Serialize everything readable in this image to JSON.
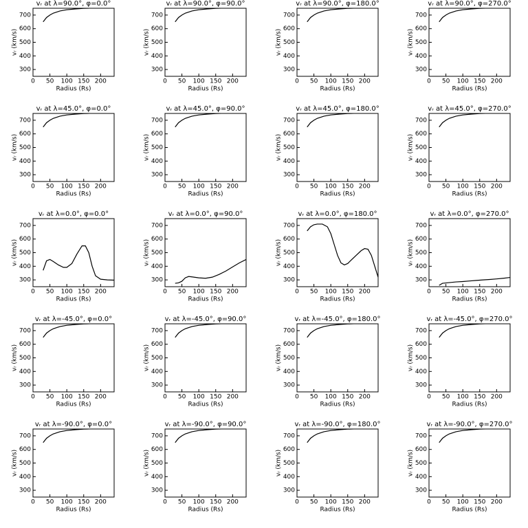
{
  "chart_data": [
    {
      "type": "line",
      "title": "vᵣ at λ=90.0°, φ=0.0°",
      "x_label": "Radius (Rs)",
      "y_label": "vᵣ (km/s)",
      "x": [
        30,
        40,
        50,
        60,
        80,
        100,
        125,
        150,
        175,
        200,
        240
      ],
      "values": [
        650,
        682,
        700,
        714,
        730,
        739,
        745,
        749,
        751,
        752,
        753
      ],
      "color": "#000000",
      "xlim": [
        0,
        240
      ],
      "xticks": [
        0,
        50,
        100,
        150,
        200
      ],
      "ylim": [
        250,
        750
      ],
      "yticks": [
        300,
        400,
        500,
        600,
        700
      ]
    },
    {
      "type": "line",
      "title": "vᵣ at λ=90.0°, φ=90.0°",
      "x_label": "Radius (Rs)",
      "y_label": "vᵣ (km/s)",
      "x": [
        30,
        40,
        50,
        60,
        80,
        100,
        125,
        150,
        175,
        200,
        240
      ],
      "values": [
        650,
        682,
        700,
        714,
        730,
        739,
        745,
        749,
        751,
        752,
        753
      ],
      "color": "#000000",
      "xlim": [
        0,
        240
      ],
      "xticks": [
        0,
        50,
        100,
        150,
        200
      ],
      "ylim": [
        250,
        750
      ],
      "yticks": [
        300,
        400,
        500,
        600,
        700
      ]
    },
    {
      "type": "line",
      "title": "vᵣ at λ=90.0°, φ=180.0°",
      "x_label": "Radius (Rs)",
      "y_label": "vᵣ (km/s)",
      "x": [
        30,
        40,
        50,
        60,
        80,
        100,
        125,
        150,
        175,
        200,
        240
      ],
      "values": [
        650,
        682,
        700,
        714,
        730,
        739,
        745,
        749,
        751,
        752,
        753
      ],
      "color": "#000000",
      "xlim": [
        0,
        240
      ],
      "xticks": [
        0,
        50,
        100,
        150,
        200
      ],
      "ylim": [
        250,
        750
      ],
      "yticks": [
        300,
        400,
        500,
        600,
        700
      ]
    },
    {
      "type": "line",
      "title": "vᵣ at λ=90.0°, φ=270.0°",
      "x_label": "Radius (Rs)",
      "y_label": "vᵣ (km/s)",
      "x": [
        30,
        40,
        50,
        60,
        80,
        100,
        125,
        150,
        175,
        200,
        240
      ],
      "values": [
        650,
        682,
        700,
        714,
        730,
        739,
        745,
        749,
        751,
        752,
        753
      ],
      "color": "#000000",
      "xlim": [
        0,
        240
      ],
      "xticks": [
        0,
        50,
        100,
        150,
        200
      ],
      "ylim": [
        250,
        750
      ],
      "yticks": [
        300,
        400,
        500,
        600,
        700
      ]
    },
    {
      "type": "line",
      "title": "vᵣ at λ=45.0°, φ=0.0°",
      "x_label": "Radius (Rs)",
      "y_label": "vᵣ (km/s)",
      "x": [
        30,
        40,
        50,
        60,
        80,
        100,
        125,
        150,
        175,
        200,
        240
      ],
      "values": [
        650,
        682,
        700,
        714,
        730,
        739,
        745,
        749,
        751,
        752,
        753
      ],
      "color": "#000000",
      "xlim": [
        0,
        240
      ],
      "xticks": [
        0,
        50,
        100,
        150,
        200
      ],
      "ylim": [
        250,
        750
      ],
      "yticks": [
        300,
        400,
        500,
        600,
        700
      ]
    },
    {
      "type": "line",
      "title": "vᵣ at λ=45.0°, φ=90.0°",
      "x_label": "Radius (Rs)",
      "y_label": "vᵣ (km/s)",
      "x": [
        30,
        40,
        50,
        60,
        80,
        100,
        125,
        150,
        175,
        200,
        240
      ],
      "values": [
        650,
        682,
        700,
        714,
        730,
        739,
        745,
        749,
        751,
        752,
        753
      ],
      "color": "#000000",
      "xlim": [
        0,
        240
      ],
      "xticks": [
        0,
        50,
        100,
        150,
        200
      ],
      "ylim": [
        250,
        750
      ],
      "yticks": [
        300,
        400,
        500,
        600,
        700
      ]
    },
    {
      "type": "line",
      "title": "vᵣ at λ=45.0°, φ=180.0°",
      "x_label": "Radius (Rs)",
      "y_label": "vᵣ (km/s)",
      "x": [
        30,
        40,
        50,
        60,
        80,
        100,
        125,
        150,
        175,
        200,
        240
      ],
      "values": [
        650,
        682,
        700,
        714,
        730,
        739,
        745,
        749,
        751,
        752,
        753
      ],
      "color": "#000000",
      "xlim": [
        0,
        240
      ],
      "xticks": [
        0,
        50,
        100,
        150,
        200
      ],
      "ylim": [
        250,
        750
      ],
      "yticks": [
        300,
        400,
        500,
        600,
        700
      ]
    },
    {
      "type": "line",
      "title": "vᵣ at λ=45.0°, φ=270.0°",
      "x_label": "Radius (Rs)",
      "y_label": "vᵣ (km/s)",
      "x": [
        30,
        40,
        50,
        60,
        80,
        100,
        125,
        150,
        175,
        200,
        240
      ],
      "values": [
        650,
        682,
        700,
        714,
        730,
        739,
        745,
        749,
        751,
        752,
        753
      ],
      "color": "#000000",
      "xlim": [
        0,
        240
      ],
      "xticks": [
        0,
        50,
        100,
        150,
        200
      ],
      "ylim": [
        250,
        750
      ],
      "yticks": [
        300,
        400,
        500,
        600,
        700
      ]
    },
    {
      "type": "line",
      "title": "vᵣ at λ=0.0°, φ=0.0°",
      "x_label": "Radius (Rs)",
      "y_label": "vᵣ (km/s)",
      "x": [
        30,
        40,
        50,
        60,
        75,
        90,
        100,
        115,
        130,
        145,
        155,
        165,
        175,
        185,
        200,
        220,
        240
      ],
      "values": [
        370,
        440,
        450,
        435,
        410,
        392,
        392,
        420,
        490,
        550,
        550,
        500,
        400,
        330,
        305,
        300,
        298
      ],
      "color": "#000000",
      "xlim": [
        0,
        240
      ],
      "xticks": [
        0,
        50,
        100,
        150,
        200
      ],
      "ylim": [
        250,
        750
      ],
      "yticks": [
        300,
        400,
        500,
        600,
        700
      ]
    },
    {
      "type": "line",
      "title": "vᵣ at λ=0.0°, φ=90.0°",
      "x_label": "Radius (Rs)",
      "y_label": "vᵣ (km/s)",
      "x": [
        30,
        40,
        50,
        60,
        70,
        80,
        100,
        120,
        140,
        160,
        180,
        200,
        220,
        240
      ],
      "values": [
        275,
        278,
        290,
        315,
        325,
        322,
        315,
        312,
        320,
        340,
        365,
        395,
        425,
        450
      ],
      "color": "#000000",
      "xlim": [
        0,
        240
      ],
      "xticks": [
        0,
        50,
        100,
        150,
        200
      ],
      "ylim": [
        250,
        750
      ],
      "yticks": [
        300,
        400,
        500,
        600,
        700
      ]
    },
    {
      "type": "line",
      "title": "vᵣ at λ=0.0°, φ=180.0°",
      "x_label": "Radius (Rs)",
      "y_label": "vᵣ (km/s)",
      "x": [
        30,
        40,
        50,
        60,
        75,
        90,
        100,
        110,
        120,
        130,
        140,
        150,
        160,
        175,
        190,
        200,
        210,
        220,
        230,
        240
      ],
      "values": [
        660,
        690,
        705,
        710,
        710,
        690,
        640,
        560,
        480,
        425,
        410,
        420,
        445,
        480,
        515,
        530,
        525,
        480,
        400,
        320
      ],
      "color": "#000000",
      "xlim": [
        0,
        240
      ],
      "xticks": [
        0,
        50,
        100,
        150,
        200
      ],
      "ylim": [
        250,
        750
      ],
      "yticks": [
        300,
        400,
        500,
        600,
        700
      ]
    },
    {
      "type": "line",
      "title": "vᵣ at λ=0.0°, φ=270.0°",
      "x_label": "Radius (Rs)",
      "y_label": "vᵣ (km/s)",
      "x": [
        30,
        40,
        60,
        80,
        100,
        120,
        140,
        160,
        180,
        200,
        220,
        240
      ],
      "values": [
        260,
        275,
        280,
        285,
        288,
        292,
        296,
        300,
        303,
        307,
        312,
        318
      ],
      "color": "#000000",
      "xlim": [
        0,
        240
      ],
      "xticks": [
        0,
        50,
        100,
        150,
        200
      ],
      "ylim": [
        250,
        750
      ],
      "yticks": [
        300,
        400,
        500,
        600,
        700
      ]
    },
    {
      "type": "line",
      "title": "vᵣ at λ=-45.0°, φ=0.0°",
      "x_label": "Radius (Rs)",
      "y_label": "vᵣ (km/s)",
      "x": [
        30,
        40,
        50,
        60,
        80,
        100,
        125,
        150,
        175,
        200,
        240
      ],
      "values": [
        650,
        682,
        700,
        714,
        730,
        739,
        745,
        749,
        751,
        752,
        753
      ],
      "color": "#000000",
      "xlim": [
        0,
        240
      ],
      "xticks": [
        0,
        50,
        100,
        150,
        200
      ],
      "ylim": [
        250,
        750
      ],
      "yticks": [
        300,
        400,
        500,
        600,
        700
      ]
    },
    {
      "type": "line",
      "title": "vᵣ at λ=-45.0°, φ=90.0°",
      "x_label": "Radius (Rs)",
      "y_label": "vᵣ (km/s)",
      "x": [
        30,
        40,
        50,
        60,
        80,
        100,
        125,
        150,
        175,
        200,
        240
      ],
      "values": [
        650,
        682,
        700,
        714,
        730,
        739,
        745,
        749,
        751,
        752,
        753
      ],
      "color": "#000000",
      "xlim": [
        0,
        240
      ],
      "xticks": [
        0,
        50,
        100,
        150,
        200
      ],
      "ylim": [
        250,
        750
      ],
      "yticks": [
        300,
        400,
        500,
        600,
        700
      ]
    },
    {
      "type": "line",
      "title": "vᵣ at λ=-45.0°, φ=180.0°",
      "x_label": "Radius (Rs)",
      "y_label": "vᵣ (km/s)",
      "x": [
        30,
        40,
        50,
        60,
        80,
        100,
        125,
        150,
        175,
        200,
        240
      ],
      "values": [
        650,
        682,
        700,
        714,
        730,
        739,
        745,
        749,
        751,
        752,
        753
      ],
      "color": "#000000",
      "xlim": [
        0,
        240
      ],
      "xticks": [
        0,
        50,
        100,
        150,
        200
      ],
      "ylim": [
        250,
        750
      ],
      "yticks": [
        300,
        400,
        500,
        600,
        700
      ]
    },
    {
      "type": "line",
      "title": "vᵣ at λ=-45.0°, φ=270.0°",
      "x_label": "Radius (Rs)",
      "y_label": "vᵣ (km/s)",
      "x": [
        30,
        40,
        50,
        60,
        80,
        100,
        125,
        150,
        175,
        200,
        240
      ],
      "values": [
        650,
        682,
        700,
        714,
        730,
        739,
        745,
        749,
        751,
        752,
        753
      ],
      "color": "#000000",
      "xlim": [
        0,
        240
      ],
      "xticks": [
        0,
        50,
        100,
        150,
        200
      ],
      "ylim": [
        250,
        750
      ],
      "yticks": [
        300,
        400,
        500,
        600,
        700
      ]
    },
    {
      "type": "line",
      "title": "vᵣ at λ=-90.0°, φ=0.0°",
      "x_label": "Radius (Rs)",
      "y_label": "vᵣ (km/s)",
      "x": [
        30,
        40,
        50,
        60,
        80,
        100,
        125,
        150,
        175,
        200,
        240
      ],
      "values": [
        650,
        682,
        700,
        714,
        730,
        739,
        745,
        749,
        751,
        752,
        753
      ],
      "color": "#000000",
      "xlim": [
        0,
        240
      ],
      "xticks": [
        0,
        50,
        100,
        150,
        200
      ],
      "ylim": [
        250,
        750
      ],
      "yticks": [
        300,
        400,
        500,
        600,
        700
      ]
    },
    {
      "type": "line",
      "title": "vᵣ at λ=-90.0°, φ=90.0°",
      "x_label": "Radius (Rs)",
      "y_label": "vᵣ (km/s)",
      "x": [
        30,
        40,
        50,
        60,
        80,
        100,
        125,
        150,
        175,
        200,
        240
      ],
      "values": [
        650,
        682,
        700,
        714,
        730,
        739,
        745,
        749,
        751,
        752,
        753
      ],
      "color": "#000000",
      "xlim": [
        0,
        240
      ],
      "xticks": [
        0,
        50,
        100,
        150,
        200
      ],
      "ylim": [
        250,
        750
      ],
      "yticks": [
        300,
        400,
        500,
        600,
        700
      ]
    },
    {
      "type": "line",
      "title": "vᵣ at λ=-90.0°, φ=180.0°",
      "x_label": "Radius (Rs)",
      "y_label": "vᵣ (km/s)",
      "x": [
        30,
        40,
        50,
        60,
        80,
        100,
        125,
        150,
        175,
        200,
        240
      ],
      "values": [
        650,
        682,
        700,
        714,
        730,
        739,
        745,
        749,
        751,
        752,
        753
      ],
      "color": "#000000",
      "xlim": [
        0,
        240
      ],
      "xticks": [
        0,
        50,
        100,
        150,
        200
      ],
      "ylim": [
        250,
        750
      ],
      "yticks": [
        300,
        400,
        500,
        600,
        700
      ]
    },
    {
      "type": "line",
      "title": "vᵣ at λ=-90.0°, φ=270.0°",
      "x_label": "Radius (Rs)",
      "y_label": "vᵣ (km/s)",
      "x": [
        30,
        40,
        50,
        60,
        80,
        100,
        125,
        150,
        175,
        200,
        240
      ],
      "values": [
        650,
        682,
        700,
        714,
        730,
        739,
        745,
        749,
        751,
        752,
        753
      ],
      "color": "#000000",
      "xlim": [
        0,
        240
      ],
      "xticks": [
        0,
        50,
        100,
        150,
        200
      ],
      "ylim": [
        250,
        750
      ],
      "yticks": [
        300,
        400,
        500,
        600,
        700
      ]
    }
  ]
}
